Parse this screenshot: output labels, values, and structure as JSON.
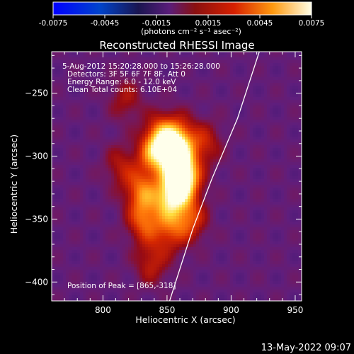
{
  "colorbar": {
    "ticks": [
      "-0.0075",
      "-0.0045",
      "-0.0015",
      "0.0015",
      "0.0045",
      "0.0075"
    ],
    "unit": "(photons cm⁻² s⁻¹ asec⁻²)"
  },
  "title": "Reconstructed RHESSI Image",
  "info": {
    "line1": "5-Aug-2012 15:20:28.000 to 15:26:28.000",
    "line2": "Detectors: 3F 5F 6F 7F 8F, Att 0",
    "line3": "Energy Range: 6.0 - 12.0 keV",
    "line4": "Clean     Total counts: 6.10E+04"
  },
  "peak_label": "Position of Peak = [865,-318]",
  "timestamp": "13-May-2022 09:07",
  "colors": {
    "limb": "#ffffff",
    "background": "#000000",
    "axis": "#ffffff"
  },
  "chart_data": {
    "type": "heatmap",
    "title": "Reconstructed RHESSI Image",
    "xlabel": "Heliocentric X (arcsec)",
    "ylabel": "Heliocentric Y (arcsec)",
    "xlim": [
      760,
      955
    ],
    "ylim": [
      -415,
      -217
    ],
    "x_ticks": [
      800,
      850,
      900,
      950
    ],
    "y_ticks": [
      -250,
      -300,
      -350,
      -400
    ],
    "colorbar_range": [
      -0.0075,
      0.0075
    ],
    "peak": [
      865,
      -318
    ],
    "sources": [
      {
        "x": 863,
        "y": -318,
        "amp": 0.0075
      },
      {
        "x": 857,
        "y": -300,
        "amp": 0.0055
      },
      {
        "x": 852,
        "y": -333,
        "amp": 0.0055
      },
      {
        "x": 840,
        "y": -298,
        "amp": 0.0045
      },
      {
        "x": 830,
        "y": -328,
        "amp": 0.004
      },
      {
        "x": 832,
        "y": -352,
        "amp": 0.0038
      },
      {
        "x": 846,
        "y": -283,
        "amp": 0.004
      },
      {
        "x": 860,
        "y": -285,
        "amp": 0.0035
      },
      {
        "x": 852,
        "y": -360,
        "amp": 0.003
      },
      {
        "x": 838,
        "y": -385,
        "amp": 0.0025
      },
      {
        "x": 818,
        "y": -255,
        "amp": 0.002
      },
      {
        "x": 814,
        "y": -308,
        "amp": 0.0022
      },
      {
        "x": 868,
        "y": -350,
        "amp": 0.0035
      },
      {
        "x": 880,
        "y": -290,
        "amp": 0.0025
      }
    ],
    "limb_curve": [
      [
        922,
        -217
      ],
      [
        905,
        -270
      ],
      [
        885,
        -318
      ],
      [
        870,
        -358
      ],
      [
        852,
        -415
      ]
    ]
  }
}
